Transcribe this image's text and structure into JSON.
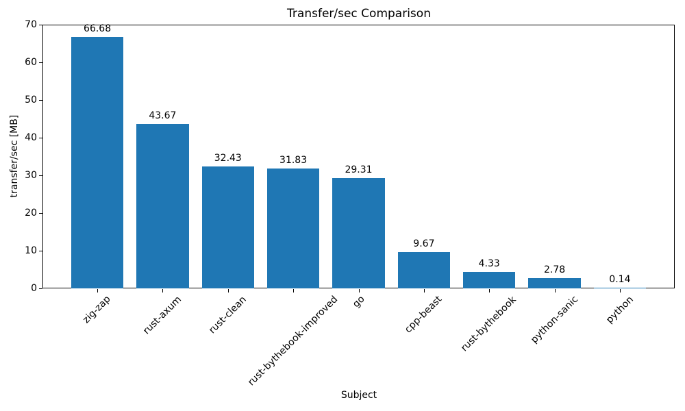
{
  "chart_data": {
    "type": "bar",
    "title": "Transfer/sec Comparison",
    "xlabel": "Subject",
    "ylabel": "transfer/sec [MB]",
    "categories": [
      "zig-zap",
      "rust-axum",
      "rust-clean",
      "rust-bythebook-improved",
      "go",
      "cpp-beast",
      "rust-bythebook",
      "python-sanic",
      "python"
    ],
    "values": [
      66.68,
      43.67,
      32.43,
      31.83,
      29.31,
      9.67,
      4.33,
      2.78,
      0.14
    ],
    "bar_value_labels": [
      "66.68",
      "43.67",
      "32.43",
      "31.83",
      "29.31",
      "9.67",
      "4.33",
      "2.78",
      "0.14"
    ],
    "ylim": [
      0,
      70
    ],
    "yticks": [
      0,
      10,
      20,
      30,
      40,
      50,
      60,
      70
    ],
    "bar_color": "#1f77b4",
    "text_color": "#000000",
    "axis_color": "#000000",
    "background": "#ffffff",
    "grid": false,
    "legend_position": "none",
    "xtick_rotation_deg": 45
  }
}
